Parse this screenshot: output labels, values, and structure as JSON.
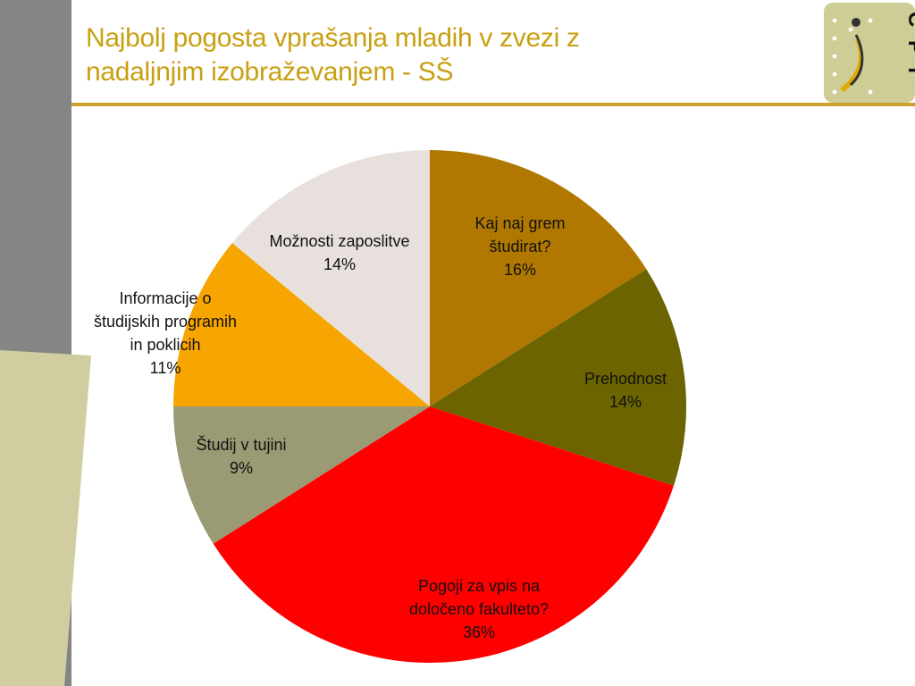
{
  "slide": {
    "title_line1": "Najbolj pogosta vprašanja mladih v zvezi z",
    "title_line2": "nadaljnjim izobraževanjem - SŠ"
  },
  "logo": {
    "text": "C P I",
    "icon": "cpi-logo-icon"
  },
  "colors": {
    "title": "#c8a012",
    "rule": "#c9a227",
    "sidebar_gray": "#858585",
    "sidebar_pale": "#d0cea0"
  },
  "chart_data": {
    "type": "pie",
    "title": "",
    "legend": "none",
    "unit": "%",
    "slices": [
      {
        "label_lines": [
          "Kaj naj grem",
          "študirat?"
        ],
        "value": 16,
        "value_label": "16%",
        "color": "#b07800"
      },
      {
        "label_lines": [
          "Prehodnost"
        ],
        "value": 14,
        "value_label": "14%",
        "color": "#6b6400"
      },
      {
        "label_lines": [
          "Pogoji za vpis na",
          "določeno fakulteto?"
        ],
        "value": 36,
        "value_label": "36%",
        "color": "#ff0000"
      },
      {
        "label_lines": [
          "Študij v tujini"
        ],
        "value": 9,
        "value_label": "9%",
        "color": "#9a9a74"
      },
      {
        "label_lines": [
          "Informacije o",
          "študijskih programih",
          "in poklicih"
        ],
        "value": 11,
        "value_label": "11%",
        "color": "#f7a500"
      },
      {
        "label_lines": [
          "Možnosti zaposlitve"
        ],
        "value": 14,
        "value_label": "14%",
        "color": "#e8e0dc"
      }
    ]
  }
}
